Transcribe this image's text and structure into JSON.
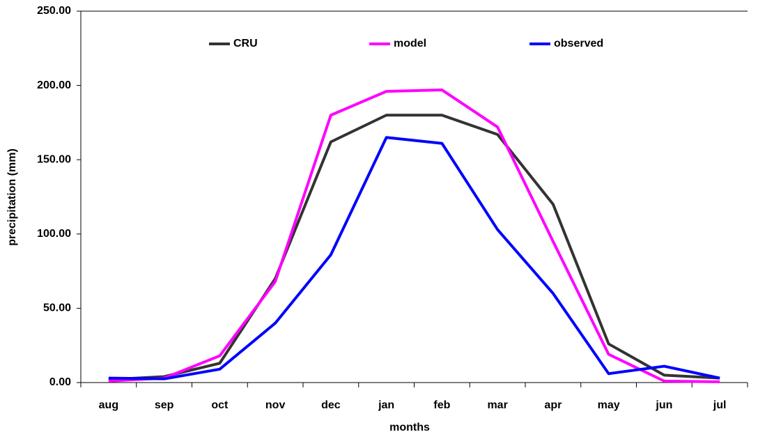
{
  "chart_data": {
    "type": "line",
    "x_label": "months",
    "y_label": "precipitation (mm)",
    "categories": [
      "aug",
      "sep",
      "oct",
      "nov",
      "dec",
      "jan",
      "feb",
      "mar",
      "apr",
      "may",
      "jun",
      "jul"
    ],
    "series": [
      {
        "name": "CRU",
        "color": "#333333",
        "values": [
          2,
          4,
          13,
          70,
          162,
          180,
          180,
          167,
          120,
          26,
          5,
          3
        ]
      },
      {
        "name": "model",
        "color": "#ff00ff",
        "values": [
          1,
          3,
          18,
          68,
          180,
          196,
          197,
          172,
          95,
          19,
          1,
          0.5
        ]
      },
      {
        "name": "observed",
        "color": "#0000ff",
        "values": [
          3,
          2.5,
          9,
          40,
          86,
          165,
          161,
          103,
          60,
          6,
          11,
          3
        ]
      }
    ],
    "ylim": [
      0,
      250
    ],
    "yticks": [
      {
        "value": 0,
        "label": "0.00"
      },
      {
        "value": 50,
        "label": "50.00"
      },
      {
        "value": 100,
        "label": "100.00"
      },
      {
        "value": 150,
        "label": "150.00"
      },
      {
        "value": 200,
        "label": "200.00"
      },
      {
        "value": 250,
        "label": "250.00"
      }
    ],
    "grid": false,
    "legend": "top"
  }
}
